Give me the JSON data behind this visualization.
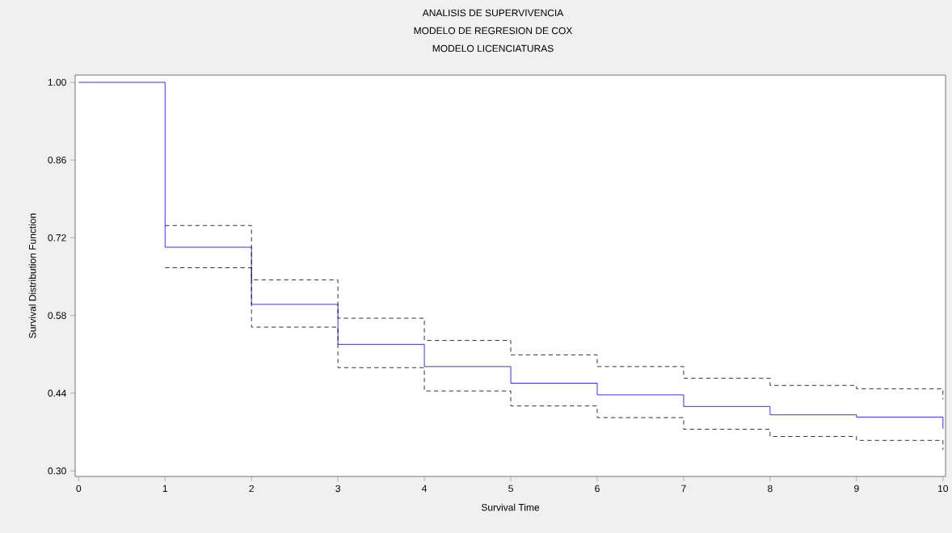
{
  "chart_data": {
    "type": "step",
    "title": "ANALISIS DE SUPERVIVENCIA",
    "subtitle": "MODELO DE REGRESION DE COX",
    "annotations": [
      "MODELO LICENCIATURAS"
    ],
    "xlabel": "Survival Time",
    "ylabel": "Survival Distribution Function",
    "xlim": [
      -0.04,
      10.03
    ],
    "ylim": [
      0.29,
      1.013
    ],
    "xticks": [
      0,
      1,
      2,
      3,
      4,
      5,
      6,
      7,
      8,
      9,
      10
    ],
    "yticks": [
      {
        "value": 0.3,
        "label": "0.30"
      },
      0.44,
      0.58,
      0.72,
      0.86,
      {
        "value": 1.0,
        "label": "1.00"
      }
    ],
    "grid": false,
    "series": [
      {
        "color": "#0000ff",
        "line_style": "solid",
        "x": [
          0,
          1,
          2,
          3,
          4,
          5,
          6,
          7,
          8,
          9,
          10
        ],
        "values": [
          1.0,
          0.703,
          0.6,
          0.528,
          0.488,
          0.458,
          0.437,
          0.416,
          0.401,
          0.397,
          0.376
        ]
      },
      {
        "color": "#000000",
        "line_style": "dashed",
        "x": [
          1,
          2,
          3,
          4,
          5,
          6,
          7,
          8,
          9,
          10
        ],
        "values": [
          0.742,
          0.644,
          0.575,
          0.535,
          0.509,
          0.488,
          0.467,
          0.454,
          0.448,
          0.429
        ]
      },
      {
        "color": "#000000",
        "line_style": "dashed",
        "x": [
          1,
          2,
          3,
          4,
          5,
          6,
          7,
          8,
          9,
          10
        ],
        "values": [
          0.666,
          0.559,
          0.486,
          0.444,
          0.417,
          0.396,
          0.375,
          0.362,
          0.355,
          0.338
        ]
      }
    ]
  }
}
